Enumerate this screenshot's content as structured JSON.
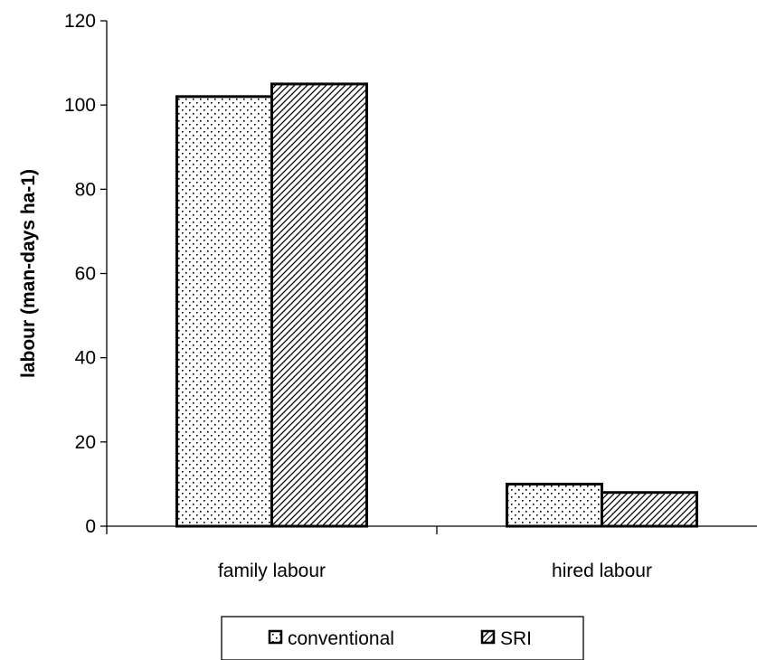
{
  "chart_data": {
    "type": "bar",
    "title": "",
    "xlabel": "",
    "ylabel": "labour (man-days ha-1)",
    "ylim": [
      0,
      120
    ],
    "yticks": [
      0,
      20,
      40,
      60,
      80,
      100,
      120
    ],
    "categories": [
      "family labour",
      "hired labour"
    ],
    "series": [
      {
        "name": "conventional",
        "values": [
          102,
          10
        ],
        "pattern": "dots",
        "color": "#000000"
      },
      {
        "name": "SRI",
        "values": [
          105,
          8
        ],
        "pattern": "diagonal-hatch",
        "color": "#000000"
      }
    ],
    "grid": false,
    "legend_placement": "bottom-center"
  }
}
